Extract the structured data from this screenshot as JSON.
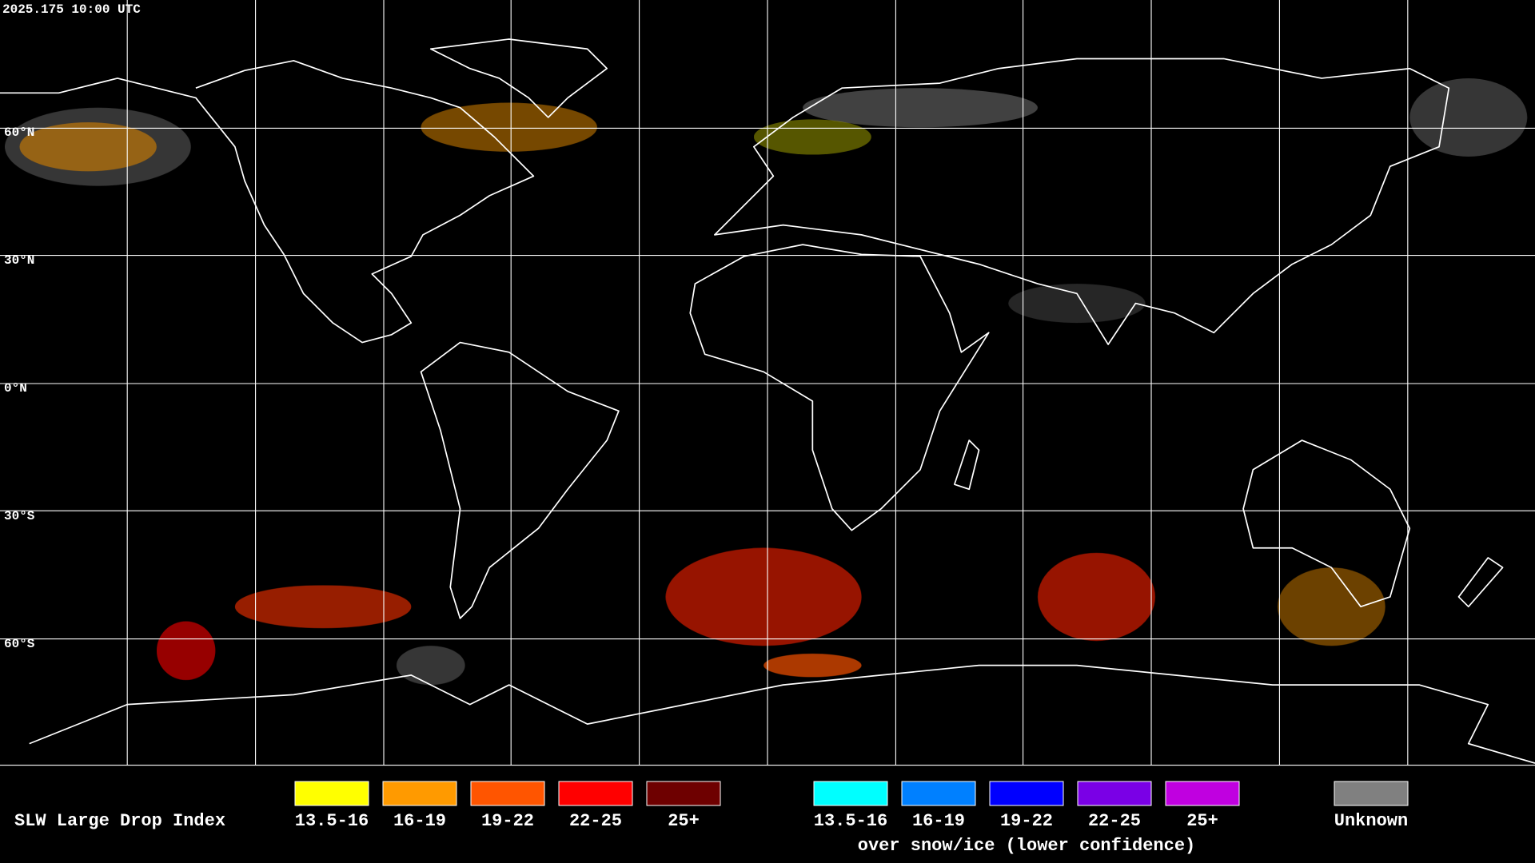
{
  "header": {
    "timestamp": "2025.175 10:00 UTC"
  },
  "grid": {
    "latitude_labels": [
      "60°N",
      "30°N",
      "0°N",
      "30°S",
      "60°S"
    ]
  },
  "legend": {
    "title": "SLW Large Drop Index",
    "groups": [
      {
        "items": [
          {
            "label": "13.5-16",
            "color": "#ffff00"
          },
          {
            "label": "16-19",
            "color": "#ff9a00"
          },
          {
            "label": "19-22",
            "color": "#ff5500"
          },
          {
            "label": "22-25",
            "color": "#ff0000"
          },
          {
            "label": "25+",
            "color": "#6e0000"
          }
        ]
      },
      {
        "items": [
          {
            "label": "13.5-16",
            "color": "#00ffff"
          },
          {
            "label": "16-19",
            "color": "#0080ff"
          },
          {
            "label": "19-22",
            "color": "#0000ff"
          },
          {
            "label": "22-25",
            "color": "#7a00e6"
          },
          {
            "label": "25+",
            "color": "#c000e0"
          }
        ],
        "caption": "over snow/ice (lower confidence)"
      }
    ],
    "unknown": {
      "label": "Unknown",
      "color": "#808080"
    }
  }
}
